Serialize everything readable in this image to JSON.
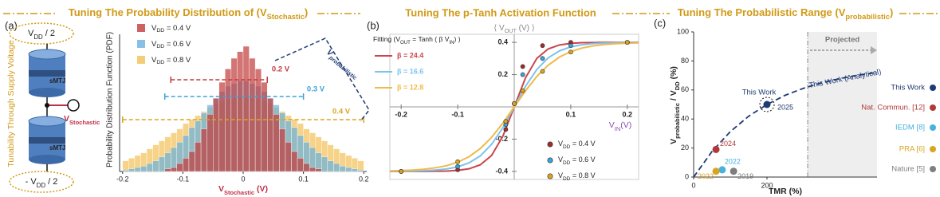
{
  "diagram": {
    "panel": "(a)",
    "top": [
      "V",
      "DD",
      " / 2"
    ],
    "bottom": [
      "- V",
      "DD",
      " / 2"
    ],
    "device": [
      "sMTJ",
      "sMTJ"
    ],
    "node": [
      "V",
      "Stochastic"
    ],
    "side": "Tunability Through Supply Voltage"
  },
  "chart_data": [
    {
      "type": "histogram",
      "title": [
        "Tuning The Probability Distribution of (V",
        "Stochastic",
        ")"
      ],
      "xlabel": [
        "V",
        "Stochastic",
        " (V)"
      ],
      "ylabel": "Probability Distribution Function (PDF)",
      "bins": [
        -0.2,
        -0.19,
        -0.18,
        -0.17,
        -0.16,
        -0.15,
        -0.14,
        -0.13,
        -0.12,
        -0.11,
        -0.1,
        -0.09,
        -0.08,
        -0.07,
        -0.06,
        -0.05,
        -0.04,
        -0.03,
        -0.02,
        -0.01,
        0,
        0.01,
        0.02,
        0.03,
        0.04,
        0.05,
        0.06,
        0.07,
        0.08,
        0.09,
        0.1,
        0.11,
        0.12,
        0.13,
        0.14,
        0.15,
        0.16,
        0.17,
        0.18,
        0.19,
        0.2
      ],
      "xlim": [
        -0.205,
        0.205
      ],
      "xticks": [
        -0.2,
        -0.1,
        0,
        0.1,
        0.2
      ],
      "ylim": [
        0,
        10
      ],
      "series": [
        {
          "name": [
            "V",
            "DD",
            " = 0.4 V"
          ],
          "color": "#c23b3b",
          "values": [
            0,
            0,
            0,
            0,
            0,
            0,
            0,
            0.2,
            0.3,
            0.6,
            1,
            1.5,
            2.2,
            3.2,
            4.3,
            5.5,
            6.7,
            7.7,
            8.5,
            9,
            9.4,
            8.5,
            7.7,
            6.7,
            5.5,
            4.3,
            3.2,
            2.2,
            1.5,
            1,
            0.6,
            0.3,
            0.2,
            0,
            0,
            0,
            0,
            0,
            0,
            0
          ]
        },
        {
          "name": [
            "V",
            "DD",
            " = 0.6 V"
          ],
          "color": "#6ab0de",
          "values": [
            0.1,
            0.2,
            0.3,
            0.4,
            0.6,
            0.8,
            1.1,
            1.4,
            1.8,
            2.2,
            2.7,
            3.3,
            3.8,
            4.4,
            5,
            5.5,
            6,
            6.4,
            6.6,
            6.8,
            6.8,
            6.6,
            6.4,
            6,
            5.5,
            5,
            4.4,
            3.8,
            3.3,
            2.7,
            2.2,
            1.8,
            1.4,
            1.1,
            0.8,
            0.6,
            0.4,
            0.3,
            0.2,
            0.1
          ]
        },
        {
          "name": [
            "V",
            "DD",
            " = 0.8 V"
          ],
          "color": "#f2c055",
          "values": [
            0.8,
            1,
            1.2,
            1.4,
            1.7,
            2,
            2.3,
            2.6,
            2.9,
            3.2,
            3.6,
            3.9,
            4.2,
            4.5,
            4.8,
            5.1,
            5.3,
            5.4,
            5.5,
            5.6,
            5.6,
            5.5,
            5.4,
            5.3,
            5.1,
            4.8,
            4.5,
            4.2,
            3.9,
            3.6,
            3.2,
            2.9,
            2.6,
            2.3,
            2,
            1.7,
            1.4,
            1.2,
            1,
            0.8
          ]
        }
      ],
      "annotations": [
        {
          "text": "0.2 V",
          "from": -0.12,
          "to": 0.04,
          "color": "#c23b3b"
        },
        {
          "text": "0.3 V",
          "from": -0.13,
          "to": 0.1,
          "color": "#3ba3d8"
        },
        {
          "text": "0.4 V",
          "from": -0.2,
          "to": 0.2,
          "color": "#d9a520"
        }
      ],
      "range_label": [
        "V",
        "probabilistic"
      ]
    },
    {
      "type": "line",
      "panel": "(b)",
      "title": "Tuning The p-Tanh Activation Function",
      "ylabel": [
        "⟨ V",
        "OUT",
        " (V) ⟩"
      ],
      "xlabel": [
        "V",
        "IN",
        "(V)"
      ],
      "fit_label": [
        "Fitting  (V",
        "OUT",
        " = Tanh ( β V",
        "IN",
        ") )"
      ],
      "x": [
        -0.22,
        -0.2,
        -0.18,
        -0.16,
        -0.14,
        -0.12,
        -0.1,
        -0.08,
        -0.06,
        -0.04,
        -0.02,
        0,
        0.02,
        0.04,
        0.06,
        0.08,
        0.1,
        0.12,
        0.14,
        0.16,
        0.18,
        0.2,
        0.22
      ],
      "xlim": [
        -0.22,
        0.22
      ],
      "xticks": [
        -0.2,
        -0.1,
        0.1,
        0.2
      ],
      "ylim": [
        -0.45,
        0.45
      ],
      "yticks": [
        -0.4,
        -0.2,
        0.2,
        0.4
      ],
      "series": [
        {
          "name": "β = 24.4",
          "color": "#c9464a",
          "values": [
            -0.4,
            -0.4,
            -0.4,
            -0.4,
            -0.399,
            -0.398,
            -0.394,
            -0.384,
            -0.359,
            -0.301,
            -0.181,
            0,
            0.181,
            0.301,
            0.359,
            0.384,
            0.394,
            0.398,
            0.399,
            0.4,
            0.4,
            0.4,
            0.4
          ]
        },
        {
          "name": "β = 16.6",
          "color": "#7cc4ec",
          "values": [
            -0.399,
            -0.399,
            -0.398,
            -0.396,
            -0.392,
            -0.385,
            -0.372,
            -0.347,
            -0.304,
            -0.232,
            -0.128,
            0,
            0.128,
            0.232,
            0.304,
            0.347,
            0.372,
            0.385,
            0.392,
            0.396,
            0.398,
            0.399,
            0.399
          ]
        },
        {
          "name": "β = 12.8",
          "color": "#f0b94a",
          "values": [
            -0.397,
            -0.395,
            -0.392,
            -0.387,
            -0.378,
            -0.365,
            -0.343,
            -0.309,
            -0.258,
            -0.189,
            -0.1,
            0,
            0.1,
            0.189,
            0.258,
            0.309,
            0.343,
            0.365,
            0.378,
            0.387,
            0.392,
            0.395,
            0.397
          ]
        }
      ],
      "points": [
        {
          "name": [
            "V",
            "DD",
            " = 0.4 V"
          ],
          "color": "#a52a2a",
          "x": [
            -0.2,
            -0.1,
            -0.015,
            0,
            0.015,
            0.05,
            0.1,
            0.2
          ],
          "values": [
            -0.4,
            -0.39,
            -0.14,
            0.02,
            0.25,
            0.38,
            0.4,
            0.4
          ]
        },
        {
          "name": [
            "V",
            "DD",
            " = 0.6 V"
          ],
          "color": "#3ba3d8",
          "x": [
            -0.2,
            -0.1,
            -0.015,
            0,
            0.015,
            0.05,
            0.1,
            0.2
          ],
          "values": [
            -0.4,
            -0.37,
            -0.11,
            0.02,
            0.2,
            0.3,
            0.38,
            0.4
          ]
        },
        {
          "name": [
            "V",
            "DD",
            " = 0.8 V"
          ],
          "color": "#d9a520",
          "x": [
            -0.2,
            -0.1,
            -0.015,
            0,
            0.015,
            0.05,
            0.1,
            0.2
          ],
          "values": [
            -0.4,
            -0.34,
            -0.09,
            0.02,
            0.1,
            0.22,
            0.34,
            0.4
          ]
        }
      ]
    },
    {
      "type": "scatter",
      "panel": "(c)",
      "title": [
        "Tuning The Probabilistic Range (V",
        "probabilistic",
        ")"
      ],
      "xlabel": "TMR (%)",
      "ylabel": [
        "V",
        "probabilistic",
        " / V",
        "DD",
        " (%)"
      ],
      "xlim": [
        0,
        500
      ],
      "xticks": [
        0,
        200
      ],
      "ylim": [
        0,
        100
      ],
      "yticks": [
        0,
        20,
        40,
        60,
        80,
        100
      ],
      "projected": {
        "label": "Projected",
        "from": 311
      },
      "curve": {
        "name": "This Work (Analytical)",
        "color": "#1f3b73",
        "x": [
          0,
          50,
          100,
          150,
          200,
          250,
          300,
          350,
          400,
          450,
          500
        ],
        "values": [
          0,
          17.6,
          31.3,
          41.9,
          50,
          56.4,
          61.2,
          65,
          67.9,
          70.3,
          72
        ]
      },
      "highlight": "This Work",
      "series": [
        {
          "name": "This Work",
          "color": "#1f3b73",
          "x": [
            200
          ],
          "values": [
            50
          ],
          "year": "2025"
        },
        {
          "name": "Nat. Commun. [12]",
          "color": "#b03a3a",
          "x": [
            61
          ],
          "values": [
            19
          ],
          "year": "2024"
        },
        {
          "name": "IEDM [8]",
          "color": "#4ab0de",
          "x": [
            78
          ],
          "values": [
            5
          ],
          "year": "2022"
        },
        {
          "name": "PRA [6]",
          "color": "#d9a520",
          "x": [
            61
          ],
          "values": [
            4
          ],
          "year": "2022"
        },
        {
          "name": "Nature [5]",
          "color": "#7f7f7f",
          "x": [
            109
          ],
          "values": [
            4
          ],
          "year": "2019"
        }
      ]
    }
  ]
}
